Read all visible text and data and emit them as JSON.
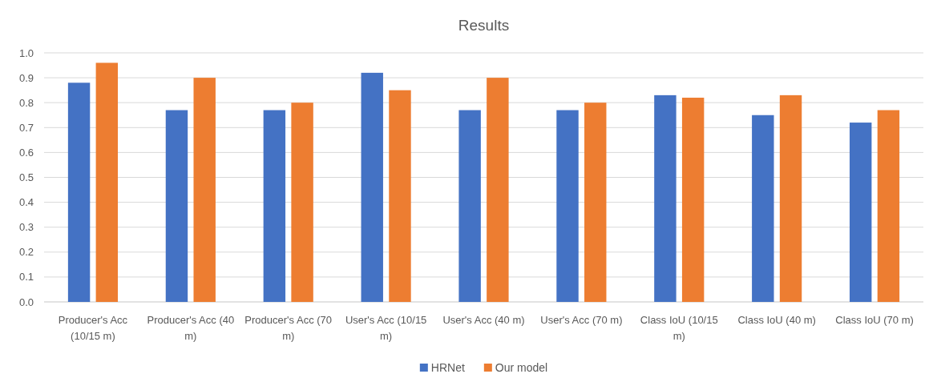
{
  "chart_data": {
    "type": "bar",
    "title": "Results",
    "categories": [
      "Producer's Acc (10/15 m)",
      "Producer's Acc (40 m)",
      "Producer's Acc (70 m)",
      "User's Acc (10/15 m)",
      "User's Acc (40 m)",
      "User's Acc (70 m)",
      "Class IoU (10/15 m)",
      "Class IoU (40 m)",
      "Class IoU (70 m)"
    ],
    "series": [
      {
        "name": "HRNet",
        "color": "#4472c4",
        "values": [
          0.88,
          0.77,
          0.77,
          0.92,
          0.77,
          0.77,
          0.83,
          0.75,
          0.72
        ]
      },
      {
        "name": "Our model",
        "color": "#ed7d31",
        "values": [
          0.96,
          0.9,
          0.8,
          0.85,
          0.9,
          0.8,
          0.82,
          0.83,
          0.77
        ]
      }
    ],
    "ylim": [
      0,
      1
    ],
    "yticks": [
      {
        "value": 0,
        "label": "0.0"
      },
      0.1,
      0.2,
      0.3,
      0.4,
      0.5,
      0.6,
      0.7,
      0.8,
      0.9,
      {
        "value": 1,
        "label": "1.0"
      }
    ],
    "grid": true,
    "legend": "bottom"
  }
}
